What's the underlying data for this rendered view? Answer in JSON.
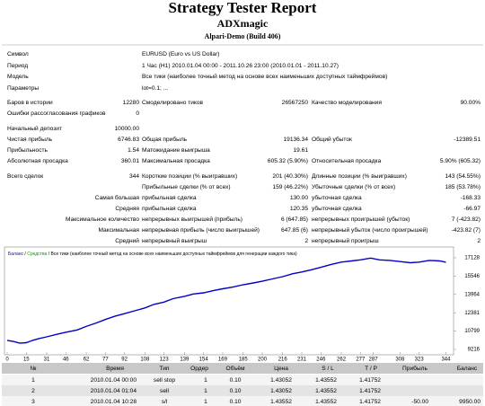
{
  "header": {
    "title": "Strategy Tester Report",
    "expert": "ADXmagic",
    "server": "Alpari-Demo (Build 406)"
  },
  "settings": [
    [
      "Символ",
      "EURUSD (Euro vs US Dollar)"
    ],
    [
      "Период",
      "1 Час (H1) 2010.01.04 00:00 - 2011.10.26 23:00 (2010.01.01 - 2011.10.27)"
    ],
    [
      "Модель",
      "Все тики (наиболее точный метод на основе всех наименьших доступных таймфреймов)"
    ],
    [
      "Параметры",
      "lot=0.1; ..."
    ]
  ],
  "summary": [
    {
      "label": "Баров в истории",
      "value": "12280",
      "label2": "Смоделировано тиков",
      "value2": "26567250",
      "label3": "Качество моделирования",
      "value3": "90.00%"
    },
    {
      "label": "Ошибки рассогласования графиков",
      "value": "0"
    },
    {
      "label": "Начальный депозит",
      "value": "10000.00"
    },
    {
      "label": "Чистая прибыль",
      "value": "6746.83",
      "label2": "Общая прибыль",
      "value2": "19136.34",
      "label3": "Общий убыток",
      "value3": "-12389.51"
    },
    {
      "label": "Прибыльность",
      "value": "1.54",
      "label2": "Матожидание выигрыша",
      "value2": "19.61"
    },
    {
      "label": "Абсолютная просадка",
      "value": "360.01",
      "label2": "Максимальная просадка",
      "value2": "605.32 (5.90%)",
      "label3": "Относительная просадка",
      "value3": "5.90% (605.32)"
    },
    {
      "label": "Всего сделок",
      "value": "344",
      "label2": "Короткие позиции (% выигравших)",
      "value2": "201 (40.30%)",
      "label3": "Длинные позиции (% выигравших)",
      "value3": "143 (54.55%)"
    },
    {
      "label2": "Прибыльные сделки (% от всех)",
      "value2": "159 (46.22%)",
      "label3": "Убыточные сделки (% от всех)",
      "value3": "185 (53.78%)"
    }
  ],
  "groups": [
    {
      "group": "Самая большая",
      "label2": "прибыльная сделка",
      "value2": "130.00",
      "label3": "убыточная сделка",
      "value3": "-168.33"
    },
    {
      "group": "Средняя",
      "label2": "прибыльная сделка",
      "value2": "120.35",
      "label3": "убыточная сделка",
      "value3": "-66.97"
    },
    {
      "group": "Максимальное количество",
      "label2": "непрерывных выигрышей (прибыль)",
      "value2": "6 (647.85)",
      "label3": "непрерывных проигрышей (убыток)",
      "value3": "7 (-423.82)"
    },
    {
      "group": "Максимальная",
      "label2": "непрерывная прибыль (число выигрышей)",
      "value2": "647.85 (6)",
      "label3": "непрерывный убыток (число проигрышей)",
      "value3": "-423.82 (7)"
    },
    {
      "group": "Средний",
      "label2": "непрерывный выигрыш",
      "value2": "2",
      "label3": "непрерывный проигрыш",
      "value3": "2"
    }
  ],
  "chart_data": {
    "type": "line",
    "legend": [
      {
        "text": "Баланс",
        "color": "#0000cc"
      },
      {
        "text": "Средства",
        "color": "#00a000"
      },
      {
        "text": "Все тики (наиболее точный метод на основе всех наименьших доступных таймфреймов для генерации каждого тика)",
        "color": "#000000"
      }
    ],
    "separator": "/",
    "series": [
      {
        "name": "Баланс",
        "color": "#0000cc",
        "x": [
          0,
          5,
          10,
          15,
          20,
          25,
          31,
          40,
          46,
          55,
          62,
          70,
          77,
          85,
          92,
          100,
          108,
          115,
          123,
          130,
          139,
          146,
          154,
          162,
          169,
          177,
          185,
          193,
          200,
          208,
          216,
          224,
          231,
          239,
          246,
          254,
          262,
          270,
          277,
          285,
          292,
          300,
          308,
          316,
          323,
          331,
          339,
          344
        ],
        "values": [
          10000,
          9900,
          9750,
          9800,
          10000,
          10150,
          10300,
          10550,
          10700,
          10900,
          11200,
          11500,
          11800,
          12100,
          12300,
          12550,
          12800,
          13100,
          13300,
          13600,
          13800,
          14000,
          14100,
          14300,
          14450,
          14600,
          14800,
          14950,
          15100,
          15300,
          15500,
          15750,
          15900,
          16100,
          16300,
          16550,
          16750,
          16850,
          16950,
          17100,
          16950,
          16900,
          16800,
          16700,
          16750,
          16900,
          16850,
          16747
        ]
      }
    ],
    "xlim": [
      0,
      350
    ],
    "xticks": [
      0,
      15,
      31,
      46,
      62,
      77,
      92,
      108,
      123,
      139,
      154,
      169,
      185,
      200,
      216,
      231,
      246,
      262,
      277,
      287,
      308,
      323,
      344
    ],
    "ylim": [
      8750,
      17900
    ],
    "yticks": [
      9216,
      10799,
      12381,
      13964,
      15546,
      17128
    ]
  },
  "trades": {
    "columns": [
      "№",
      "Время",
      "Тип",
      "Ордер",
      "Объём",
      "Цена",
      "S / L",
      "T / P",
      "Прибыль",
      "Баланс"
    ],
    "rows": [
      [
        "1",
        "2010.01.04 00:00",
        "sell stop",
        "1",
        "0.10",
        "1.43052",
        "1.43552",
        "1.41752"
      ],
      [
        "2",
        "2010.01.04 01:04",
        "sell",
        "1",
        "0.10",
        "1.43052",
        "1.43552",
        "1.41752"
      ],
      [
        "3",
        "2010.01.04 10:28",
        "s/l",
        "1",
        "0.10",
        "1.43552",
        "1.43552",
        "1.41752",
        "-50.00",
        "9950.00"
      ]
    ]
  }
}
